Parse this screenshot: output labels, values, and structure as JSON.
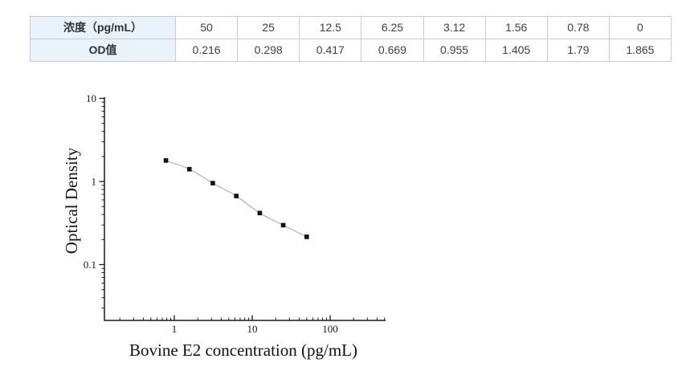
{
  "table": {
    "row1_header": "浓度（pg/mL）",
    "row2_header": "OD值",
    "concentrations": [
      "50",
      "25",
      "12.5",
      "6.25",
      "3.12",
      "1.56",
      "0.78",
      "0"
    ],
    "od_values": [
      "0.216",
      "0.298",
      "0.417",
      "0.669",
      "0.955",
      "1.405",
      "1.79",
      "1.865"
    ]
  },
  "chart_data": {
    "type": "line",
    "x": [
      0.78,
      1.56,
      3.12,
      6.25,
      12.5,
      25,
      50
    ],
    "y": [
      1.79,
      1.405,
      0.955,
      0.669,
      0.417,
      0.298,
      0.216
    ],
    "title": "",
    "xlabel": "Bovine E2 concentration (pg/mL)",
    "ylabel": "Optical Density",
    "x_scale": "log",
    "y_scale": "log",
    "x_ticks": [
      1,
      10,
      100
    ],
    "y_ticks": [
      10,
      1,
      0.1
    ],
    "xlim": [
      0.13,
      510
    ],
    "ylim": [
      0.023,
      10
    ],
    "grid": false,
    "legend": "none",
    "marker": "square",
    "marker_color": "#111111",
    "line_color": "#b3b3b3",
    "axis_color": "#1a1a1a"
  }
}
